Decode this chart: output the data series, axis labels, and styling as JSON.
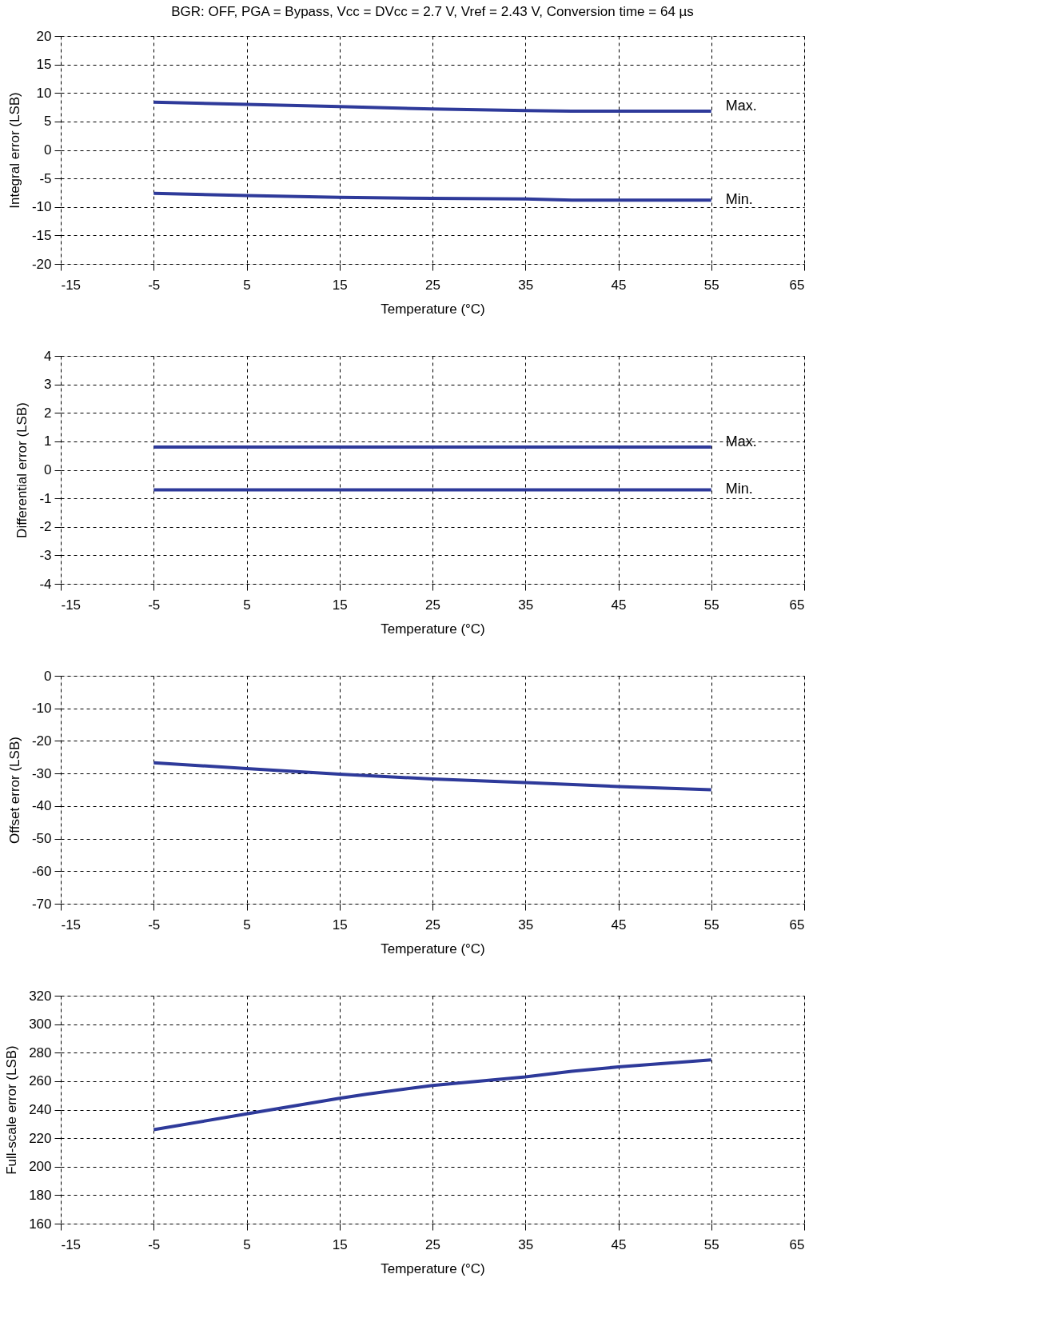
{
  "chart_data": [
    {
      "type": "line",
      "title": "BGR: OFF, PGA = Bypass, Vcc = DVcc = 2.7 V, Vref = 2.43 V, Conversion time = 64 µs",
      "xlabel": "Temperature (°C)",
      "ylabel": "Integral error (LSB)",
      "x": [
        -5,
        5,
        15,
        25,
        35,
        40,
        55
      ],
      "xlim": [
        -15,
        65
      ],
      "xticks": [
        -15,
        -5,
        5,
        15,
        25,
        35,
        45,
        55,
        65
      ],
      "ylim": [
        -20,
        20
      ],
      "yticks": [
        -20,
        -15,
        -10,
        -5,
        0,
        5,
        10,
        15,
        20
      ],
      "grid": true,
      "line_style": "solid",
      "series": [
        {
          "name": "Max.",
          "color": "#2e3a9a",
          "values": [
            8.4,
            8.0,
            7.6,
            7.2,
            6.9,
            6.8,
            6.8
          ]
        },
        {
          "name": "Min.",
          "color": "#2e3a9a",
          "values": [
            -7.6,
            -8.0,
            -8.3,
            -8.5,
            -8.6,
            -8.8,
            -8.8
          ]
        }
      ]
    },
    {
      "type": "line",
      "xlabel": "Temperature (°C)",
      "ylabel": "Differential error (LSB)",
      "x": [
        -5,
        55
      ],
      "xlim": [
        -15,
        65
      ],
      "xticks": [
        -15,
        -5,
        5,
        15,
        25,
        35,
        45,
        55,
        65
      ],
      "ylim": [
        -4,
        4
      ],
      "yticks": [
        -4,
        -3,
        -2,
        -1,
        0,
        1,
        2,
        3,
        4
      ],
      "grid": true,
      "line_style": "solid",
      "series": [
        {
          "name": "Max.",
          "color": "#2e3a9a",
          "values": [
            0.8,
            0.8
          ]
        },
        {
          "name": "Min.",
          "color": "#2e3a9a",
          "values": [
            -0.7,
            -0.7
          ]
        }
      ]
    },
    {
      "type": "line",
      "xlabel": "Temperature (°C)",
      "ylabel": "Offset error (LSB)",
      "x": [
        -5,
        5,
        15,
        25,
        35,
        45,
        55
      ],
      "xlim": [
        -15,
        65
      ],
      "xticks": [
        -15,
        -5,
        5,
        15,
        25,
        35,
        45,
        55,
        65
      ],
      "ylim": [
        -70,
        0
      ],
      "yticks": [
        -70,
        -60,
        -50,
        -40,
        -30,
        -20,
        -10,
        0
      ],
      "grid": true,
      "line_style": "solid",
      "series": [
        {
          "color": "#2e3a9a",
          "values": [
            -26.7,
            -28.5,
            -30.2,
            -31.7,
            -32.8,
            -34.0,
            -35.0
          ]
        }
      ]
    },
    {
      "type": "line",
      "xlabel": "Temperature (°C)",
      "ylabel": "Full-scale error (LSB)",
      "x": [
        -5,
        5,
        15,
        18,
        25,
        35,
        40,
        45,
        55
      ],
      "xlim": [
        -15,
        65
      ],
      "xticks": [
        -15,
        -5,
        5,
        15,
        25,
        35,
        45,
        55,
        65
      ],
      "ylim": [
        160,
        320
      ],
      "yticks": [
        160,
        180,
        200,
        220,
        240,
        260,
        280,
        300,
        320
      ],
      "grid": true,
      "line_style": "solid",
      "series": [
        {
          "color": "#2e3a9a",
          "values": [
            226,
            237,
            248,
            251,
            257,
            263,
            267,
            270,
            275
          ]
        }
      ]
    }
  ]
}
